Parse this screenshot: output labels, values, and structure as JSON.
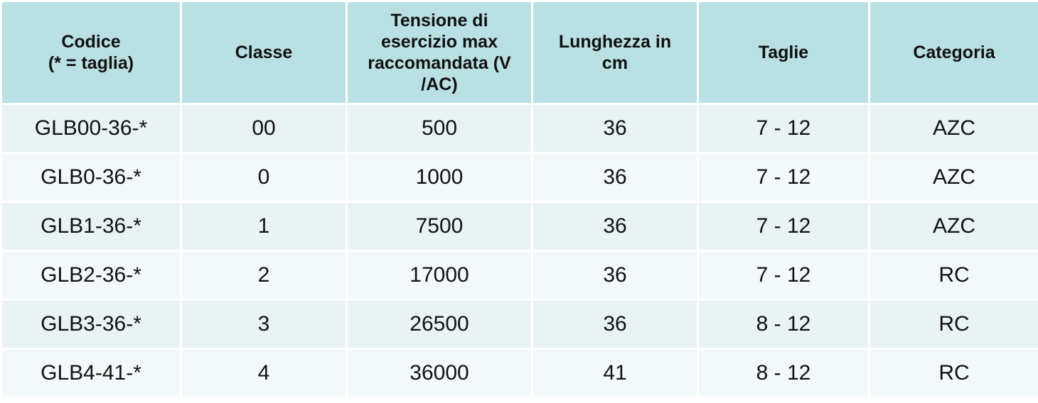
{
  "headers": [
    "Codice (* = taglia)",
    "Classe",
    "Tensione di esercizio max raccomandata (V /AC)",
    "Lunghezza in cm",
    "Taglie",
    "Categoria"
  ],
  "header_lines": [
    [
      "Codice",
      "(* = taglia)"
    ],
    [
      "Classe"
    ],
    [
      "Tensione di",
      "esercizio max",
      "raccomandata (V",
      "/AC)"
    ],
    [
      "Lunghezza in",
      "cm"
    ],
    [
      "Taglie"
    ],
    [
      "Categoria"
    ]
  ],
  "rows": [
    [
      "GLB00-36-*",
      "00",
      "500",
      "36",
      "7 - 12",
      "AZC"
    ],
    [
      "GLB0-36-*",
      "0",
      "1000",
      "36",
      "7 - 12",
      "AZC"
    ],
    [
      "GLB1-36-*",
      "1",
      "7500",
      "36",
      "7 - 12",
      "AZC"
    ],
    [
      "GLB2-36-*",
      "2",
      "17000",
      "36",
      "7 - 12",
      "RC"
    ],
    [
      "GLB3-36-*",
      "3",
      "26500",
      "36",
      "8 - 12",
      "RC"
    ],
    [
      "GLB4-41-*",
      "4",
      "36000",
      "41",
      "8 - 12",
      "RC"
    ]
  ],
  "colors": {
    "header_bg": "#b9e0e3",
    "row_bg_a": "#e9f3f4",
    "row_bg_b": "#f3f9fa",
    "text": "#111111"
  }
}
